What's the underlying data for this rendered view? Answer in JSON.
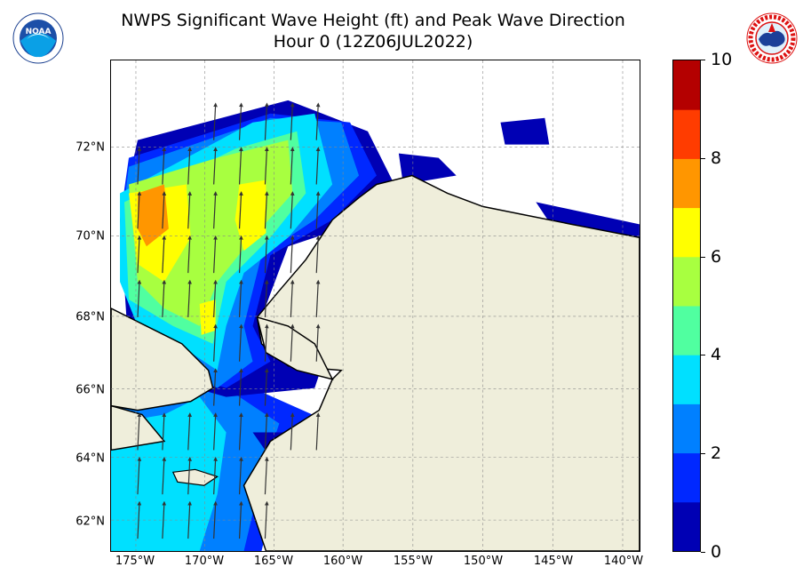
{
  "title": {
    "line1": "NWPS Significant Wave Height (ft) and Peak Wave Direction",
    "line2": "Hour 0 (12Z06JUL2022)"
  },
  "logos": {
    "left": {
      "icon": "noaa-logo",
      "text": "NOAA"
    },
    "right": {
      "icon": "nws-logo"
    }
  },
  "map": {
    "lat_labels": [
      "72°N",
      "70°N",
      "68°N",
      "66°N",
      "64°N",
      "62°N"
    ],
    "lon_labels": [
      "175°W",
      "170°W",
      "165°W",
      "160°W",
      "155°W",
      "150°W",
      "145°W",
      "140°W"
    ],
    "grid": true,
    "land_color": "#efeedb",
    "arrow_direction": "north"
  },
  "colorbar": {
    "min": 0,
    "max": 10,
    "labels": [
      "0",
      "2",
      "4",
      "6",
      "8",
      "10"
    ],
    "colors": [
      "#0000b4",
      "#0028ff",
      "#0080ff",
      "#00e0ff",
      "#50ffa0",
      "#a8ff40",
      "#ffff00",
      "#ff9600",
      "#ff3c00",
      "#b40000"
    ]
  }
}
